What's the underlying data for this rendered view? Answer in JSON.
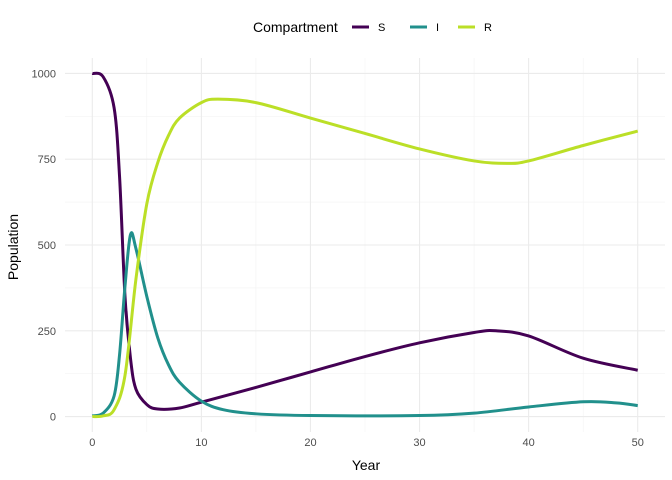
{
  "chart_data": {
    "type": "line",
    "title": "",
    "xlabel": "Year",
    "ylabel": "Population",
    "xlim": [
      -2.5,
      52.5
    ],
    "ylim": [
      -45,
      1045
    ],
    "xticks": [
      0,
      10,
      20,
      30,
      40,
      50
    ],
    "yticks": [
      0,
      250,
      500,
      750,
      1000
    ],
    "grid": true,
    "legend": {
      "title": "Compartment",
      "position": "top"
    },
    "series": [
      {
        "name": "S",
        "color": "#440154",
        "x": [
          0,
          1,
          2,
          2.5,
          3,
          3.5,
          4,
          5,
          6,
          8,
          10,
          15,
          20,
          25,
          30,
          35,
          37,
          40,
          45,
          50
        ],
        "y": [
          1000,
          990,
          900,
          700,
          350,
          170,
          80,
          35,
          22,
          25,
          42,
          85,
          130,
          175,
          215,
          245,
          250,
          235,
          170,
          135
        ]
      },
      {
        "name": "I",
        "color": "#21908C",
        "x": [
          0,
          1,
          2,
          2.5,
          3,
          3.5,
          4,
          5,
          6,
          7,
          8,
          10,
          12,
          15,
          20,
          30,
          35,
          40,
          45,
          48,
          50
        ],
        "y": [
          2,
          10,
          60,
          180,
          380,
          530,
          490,
          350,
          230,
          150,
          100,
          45,
          20,
          8,
          3,
          3,
          10,
          28,
          43,
          40,
          32
        ]
      },
      {
        "name": "R",
        "color": "#BBDF27",
        "x": [
          0,
          1,
          2,
          3,
          4,
          5,
          6,
          7,
          8,
          10,
          11.5,
          15,
          20,
          25,
          30,
          35,
          38,
          40,
          45,
          50
        ],
        "y": [
          0,
          2,
          20,
          120,
          400,
          620,
          740,
          820,
          870,
          915,
          925,
          915,
          870,
          825,
          780,
          745,
          738,
          745,
          790,
          832
        ]
      }
    ]
  }
}
